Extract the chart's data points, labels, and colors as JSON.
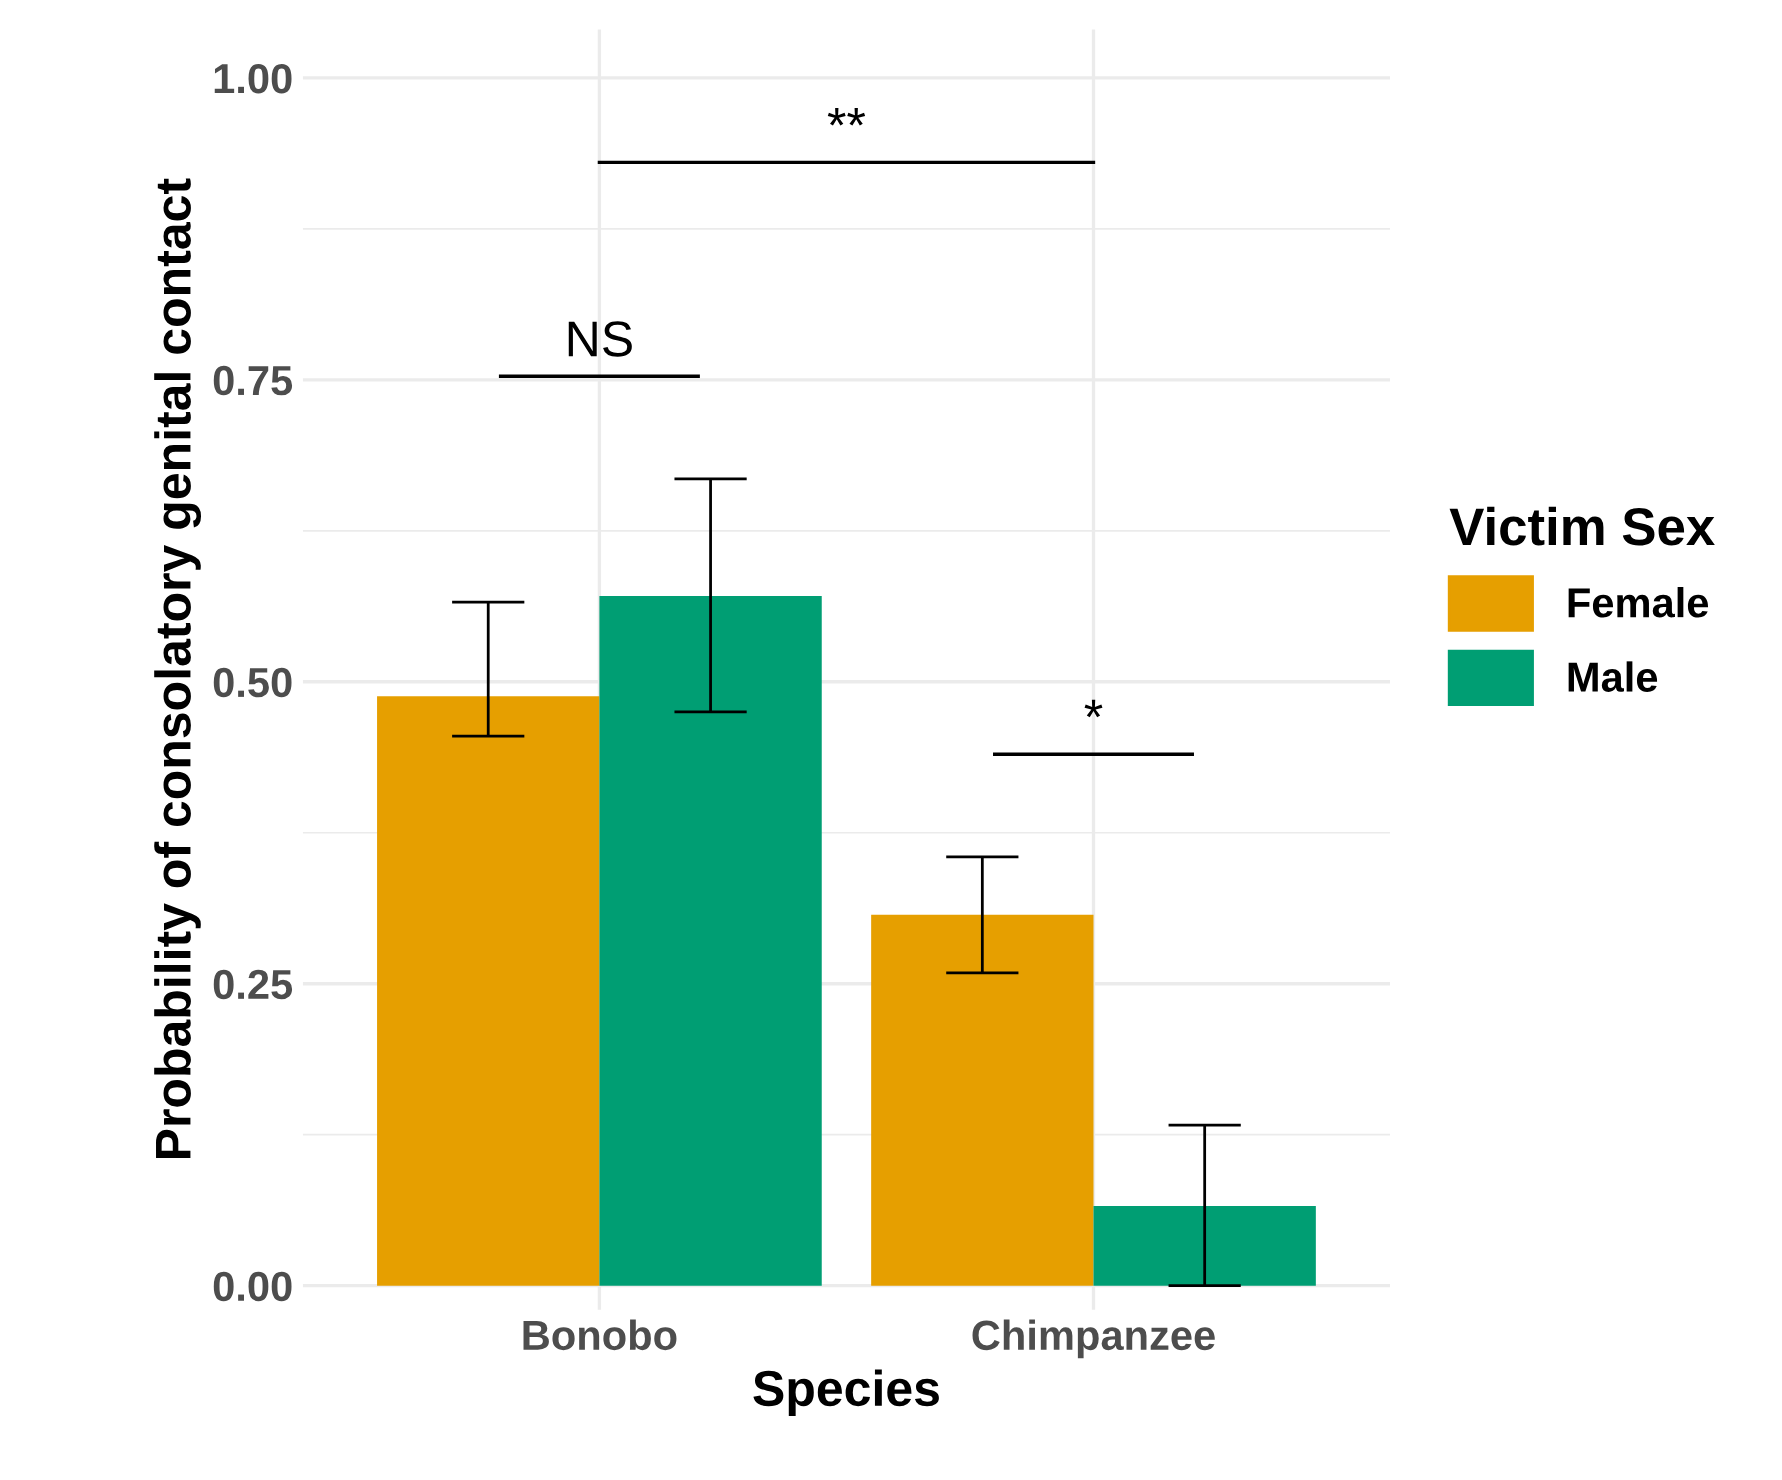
{
  "chart_data": {
    "type": "bar",
    "xlabel": "Species",
    "ylabel": "Probability of consolatory genital contact",
    "legend_title": "Victim Sex",
    "categories": [
      "Bonobo",
      "Chimpanzee"
    ],
    "series": [
      {
        "name": "Female",
        "color": "#e69f00",
        "values": [
          0.488,
          0.307
        ],
        "errors": [
          [
            0.455,
            0.566
          ],
          [
            0.259,
            0.355
          ]
        ]
      },
      {
        "name": "Male",
        "color": "#009e73",
        "values": [
          0.571,
          0.066
        ],
        "errors": [
          [
            0.475,
            0.668
          ],
          [
            0.0,
            0.133
          ]
        ]
      }
    ],
    "ylim": [
      -0.02,
      1.04
    ],
    "yticks": [
      {
        "value": 0,
        "label": "0.00"
      },
      {
        "value": 0.25,
        "label": "0.25"
      },
      {
        "value": 0.5,
        "label": "0.50"
      },
      {
        "value": 0.75,
        "label": "0.75"
      },
      {
        "value": 1,
        "label": "1.00"
      }
    ],
    "grid": true,
    "legend": "right",
    "annotations": [
      "NS",
      "**",
      "*"
    ]
  }
}
